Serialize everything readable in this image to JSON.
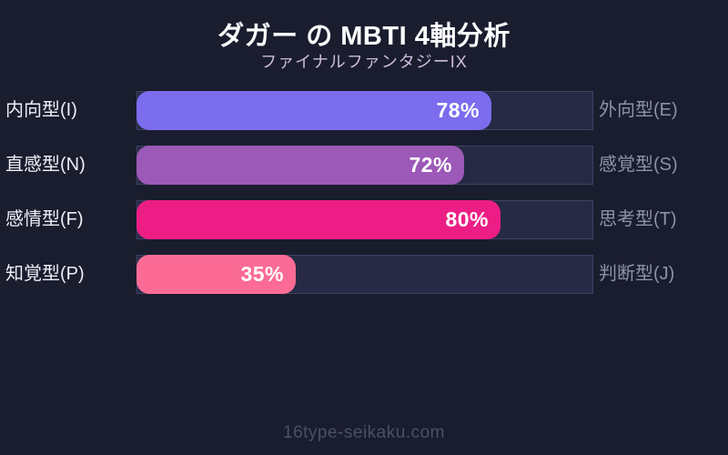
{
  "header": {
    "title": "ダガー の MBTI 4軸分析",
    "subtitle": "ファイナルファンタジーIX"
  },
  "footer": {
    "site": "16type-seikaku.com"
  },
  "colors": {
    "background": "#1a1d2e",
    "track": "#262a44",
    "track_border": "#3e4263",
    "bar_introvert": "#7c6cee",
    "bar_intuition": "#9c59b8",
    "bar_feeling": "#ec1e85",
    "bar_perceiving": "#fb6b96",
    "title_text": "#ffffff",
    "subtitle_text": "#cfbcdf",
    "left_label_text": "#edeef5",
    "right_label_text": "#8e92a9",
    "footer_text": "#4b5068"
  },
  "chart_data": {
    "type": "bar",
    "orientation": "horizontal",
    "title": "ダガー の MBTI 4軸分析",
    "subtitle": "ファイナルファンタジーIX",
    "xlim": [
      0,
      100
    ],
    "grid": false,
    "legend": "none",
    "axes": [
      {
        "left_label": "内向型(I)",
        "right_label": "外向型(E)",
        "value": 78,
        "value_label": "78%",
        "color": "#7c6cee"
      },
      {
        "left_label": "直感型(N)",
        "right_label": "感覚型(S)",
        "value": 72,
        "value_label": "72%",
        "color": "#9c59b8"
      },
      {
        "left_label": "感情型(F)",
        "right_label": "思考型(T)",
        "value": 80,
        "value_label": "80%",
        "color": "#ec1e85"
      },
      {
        "left_label": "知覚型(P)",
        "right_label": "判断型(J)",
        "value": 35,
        "value_label": "35%",
        "color": "#fb6b96"
      }
    ]
  }
}
